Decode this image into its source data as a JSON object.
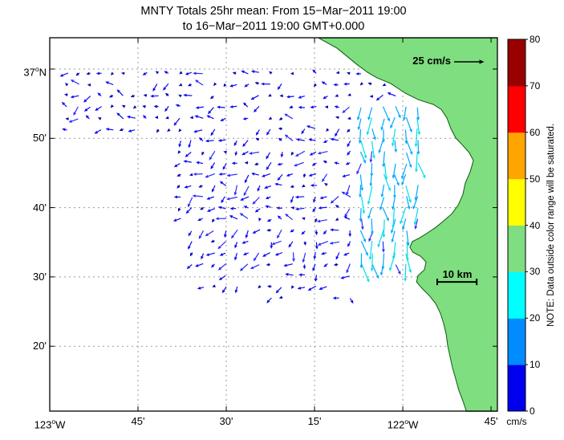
{
  "title": {
    "line1": "MNTY Totals 25hr mean: From 15−Mar−2011 19:00",
    "line2": "to 16−Mar−2011 19:00 GMT+0.000"
  },
  "chart_data": {
    "type": "scatter",
    "subtype": "quiver-surface-current-map",
    "station": "MNTY",
    "title": "MNTY Totals 25hr mean: From 15−Mar−2011 19:00 to 16−Mar−2011 19:00 GMT+0.000",
    "grid": true,
    "x_axis": {
      "range": [
        -123.0,
        -121.732
      ],
      "ticks": [
        {
          "v": -123.0,
          "t": "123",
          "sup": "o",
          "suf": "W"
        },
        {
          "v": -122.75,
          "t": "45'"
        },
        {
          "v": -122.5,
          "t": "30'"
        },
        {
          "v": -122.25,
          "t": "15'"
        },
        {
          "v": -122.0,
          "t": "122",
          "sup": "o",
          "suf": "W"
        },
        {
          "v": -121.75,
          "t": "45'"
        }
      ]
    },
    "y_axis": {
      "range": [
        36.1773,
        37.0753
      ],
      "ticks": [
        {
          "v": 37.0,
          "t": "37",
          "sup": "o",
          "suf": "N"
        },
        {
          "v": 36.8333,
          "t": "50'"
        },
        {
          "v": 36.6667,
          "t": "40'"
        },
        {
          "v": 36.5,
          "t": "30'"
        },
        {
          "v": 36.3333,
          "t": "20'"
        }
      ]
    },
    "colorbar": {
      "units": "cm/s",
      "note": "NOTE: Data outside color range will be saturated.",
      "tick_values": [
        0,
        10,
        20,
        30,
        40,
        50,
        60,
        70,
        80
      ],
      "segment_colors": [
        "#0000EF",
        "#008CFF",
        "#00FFFF",
        "#7FDE7F",
        "#FFFF00",
        "#FFA500",
        "#FF0000",
        "#990000"
      ]
    },
    "reference_arrow": {
      "label": "25 cm/s",
      "speed": 25
    },
    "scale_bar": {
      "label": "10 km",
      "km": 10
    },
    "land_color": "#7FDE7F",
    "coast_stroke": "#0B5B0B",
    "coastline": [
      [
        -122.239,
        37.075
      ],
      [
        -122.186,
        37.05
      ],
      [
        -122.13,
        37.011
      ],
      [
        -122.1,
        36.992
      ],
      [
        -122.073,
        36.979
      ],
      [
        -122.034,
        36.965
      ],
      [
        -121.993,
        36.942
      ],
      [
        -121.955,
        36.926
      ],
      [
        -121.914,
        36.915
      ],
      [
        -121.891,
        36.903
      ],
      [
        -121.875,
        36.882
      ],
      [
        -121.864,
        36.857
      ],
      [
        -121.85,
        36.834
      ],
      [
        -121.832,
        36.818
      ],
      [
        -121.812,
        36.799
      ],
      [
        -121.8,
        36.78
      ],
      [
        -121.809,
        36.753
      ],
      [
        -121.823,
        36.726
      ],
      [
        -121.83,
        36.698
      ],
      [
        -121.843,
        36.673
      ],
      [
        -121.861,
        36.652
      ],
      [
        -121.884,
        36.635
      ],
      [
        -121.907,
        36.619
      ],
      [
        -121.93,
        36.606
      ],
      [
        -121.952,
        36.594
      ],
      [
        -121.973,
        36.585
      ],
      [
        -121.98,
        36.571
      ],
      [
        -121.971,
        36.559
      ],
      [
        -121.95,
        36.55
      ],
      [
        -121.934,
        36.536
      ],
      [
        -121.939,
        36.517
      ],
      [
        -121.957,
        36.503
      ],
      [
        -121.961,
        36.488
      ],
      [
        -121.945,
        36.472
      ],
      [
        -121.925,
        36.455
      ],
      [
        -121.907,
        36.436
      ],
      [
        -121.893,
        36.412
      ],
      [
        -121.884,
        36.387
      ],
      [
        -121.877,
        36.362
      ],
      [
        -121.873,
        36.335
      ],
      [
        -121.866,
        36.308
      ],
      [
        -121.859,
        36.281
      ],
      [
        -121.85,
        36.254
      ],
      [
        -121.841,
        36.227
      ],
      [
        -121.829,
        36.2
      ],
      [
        -121.82,
        36.177
      ],
      [
        -121.732,
        36.177
      ],
      [
        -121.732,
        37.075
      ]
    ],
    "vector_field": {
      "seed": 7,
      "grid_origin": [
        -122.95,
        36.45
      ],
      "grid_lon_step": 0.032,
      "grid_lat_step": 0.027,
      "speed_range_cm_s": [
        2,
        20
      ],
      "speed_colors": [
        {
          "max": 4,
          "color": "#0000B4"
        },
        {
          "max": 8,
          "color": "#0A0AF0"
        },
        {
          "max": 10,
          "color": "#2B2BFF"
        },
        {
          "max": 14,
          "color": "#00A8FF"
        },
        {
          "max": 20,
          "color": "#00E0E8"
        },
        {
          "max": 30,
          "color": "#00FFFF"
        },
        {
          "max": 40,
          "color": "#7FDE7F"
        },
        {
          "max": 50,
          "color": "#FFFF00"
        },
        {
          "max": 60,
          "color": "#FFA500"
        },
        {
          "max": 70,
          "color": "#FF0000"
        },
        {
          "max": 999,
          "color": "#990000"
        }
      ],
      "regions": [
        {
          "name": "offshore-north",
          "lon": [
            -122.95,
            -122.0
          ],
          "lat": [
            36.845,
            36.995
          ],
          "dir": 262,
          "dir_jitter": 55,
          "speed": 5,
          "speed_jitter": 3.5,
          "skip": 0.18
        },
        {
          "name": "central-bay",
          "lon": [
            -122.64,
            -121.95
          ],
          "lat": [
            36.615,
            36.845
          ],
          "dir": 252,
          "dir_jitter": 62,
          "speed": 6,
          "speed_jitter": 3.5,
          "skip": 0.07
        },
        {
          "name": "south",
          "lon": [
            -122.62,
            -122.0
          ],
          "lat": [
            36.512,
            36.615
          ],
          "dir": 225,
          "dir_jitter": 55,
          "speed": 6.5,
          "speed_jitter": 3,
          "skip": 0.12
        },
        {
          "name": "south-sparse",
          "lon": [
            -122.57,
            -122.14
          ],
          "lat": [
            36.448,
            36.512
          ],
          "dir": 205,
          "dir_jitter": 75,
          "speed": 5,
          "speed_jitter": 3,
          "skip": 0.5
        },
        {
          "name": "coastal-jet",
          "lon": [
            -122.135,
            -121.93
          ],
          "lat": [
            36.53,
            36.935
          ],
          "dir": 178,
          "dir_jitter": 26,
          "speed": 13,
          "speed_jitter": 4,
          "skip": 0.05
        }
      ]
    }
  }
}
